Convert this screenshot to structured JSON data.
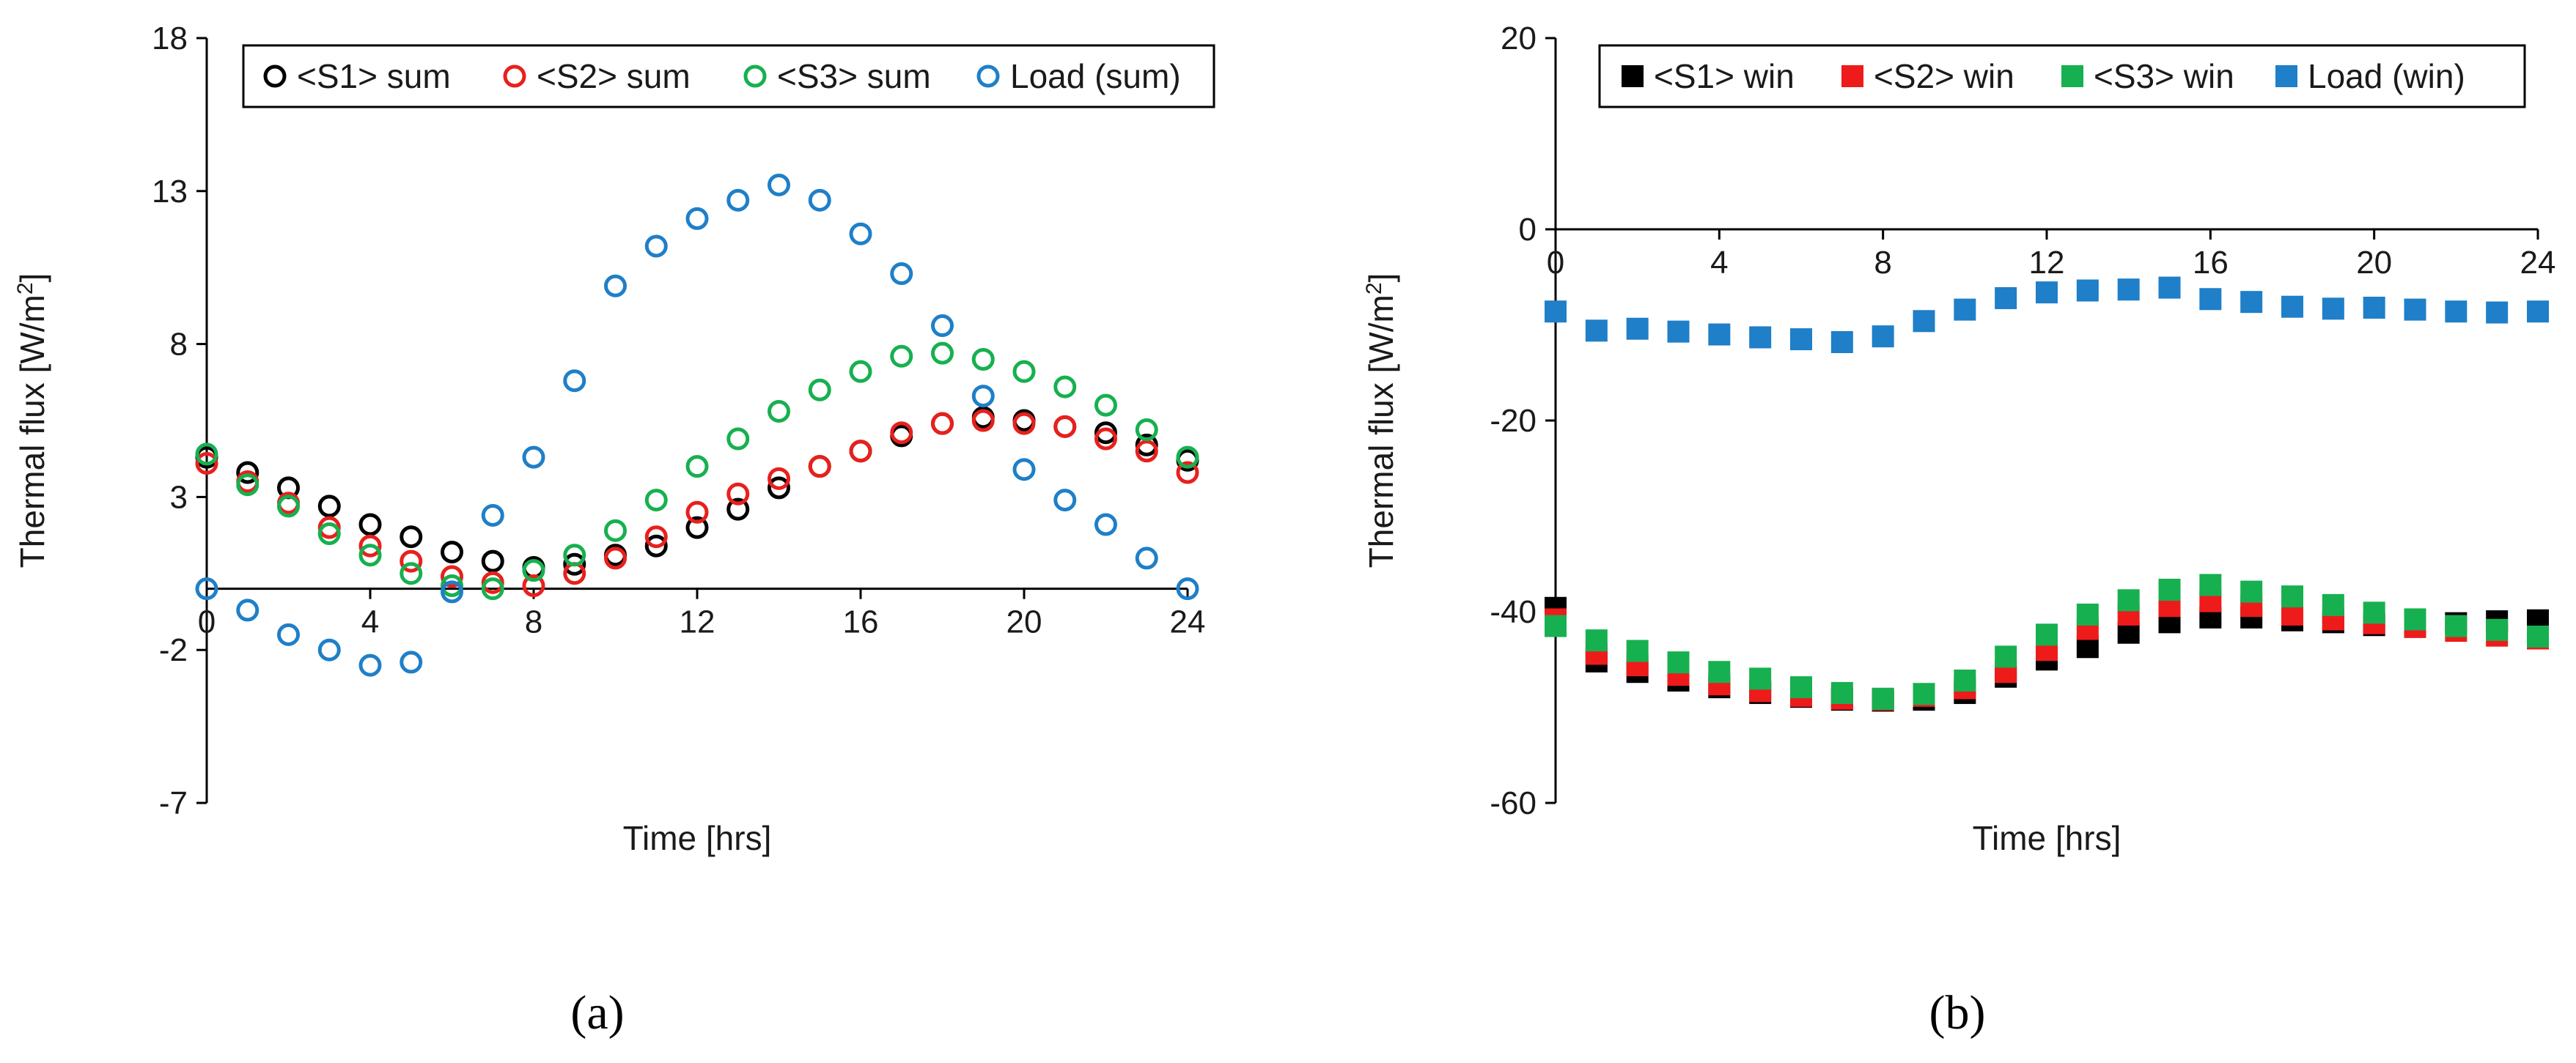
{
  "chart_data": [
    {
      "type": "scatter",
      "panel_label": "(a)",
      "xlabel": "Time [hrs]",
      "ylabel": "Thermal flux [W/m",
      "ylabel_sup": "2",
      "ylabel_end": "]",
      "xlim": [
        0,
        24
      ],
      "ylim": [
        -7,
        18
      ],
      "xticks": [
        0,
        4,
        8,
        12,
        16,
        20,
        24
      ],
      "xtick_labels": [
        "0",
        "4",
        "8",
        "12",
        "16",
        "20",
        "24"
      ],
      "yticks": [
        -7,
        -2,
        3,
        8,
        13,
        18
      ],
      "ytick_labels": [
        "-7",
        "-2",
        "3",
        "8",
        "13",
        "18"
      ],
      "x_axis_at": 0,
      "legend_position": "top",
      "grid": false,
      "marker": "circle-open",
      "x": [
        0,
        1,
        2,
        3,
        4,
        5,
        6,
        7,
        8,
        9,
        10,
        11,
        12,
        13,
        14,
        15,
        16,
        17,
        18,
        19,
        20,
        21,
        22,
        23,
        24
      ],
      "series": [
        {
          "name": "<S1> sum",
          "color": "#000000",
          "values": [
            4.3,
            3.8,
            3.3,
            2.7,
            2.1,
            1.7,
            1.2,
            0.9,
            0.7,
            0.8,
            1.1,
            1.4,
            2.0,
            2.6,
            3.3,
            4.0,
            4.5,
            5.0,
            5.4,
            5.6,
            5.5,
            5.3,
            5.1,
            4.7,
            4.2
          ]
        },
        {
          "name": "<S2> sum",
          "color": "#e8201c",
          "values": [
            4.1,
            3.5,
            2.8,
            2.0,
            1.4,
            0.9,
            0.4,
            0.2,
            0.1,
            0.5,
            1.0,
            1.7,
            2.5,
            3.1,
            3.6,
            4.0,
            4.5,
            5.1,
            5.4,
            5.5,
            5.4,
            5.3,
            4.9,
            4.5,
            3.8
          ]
        },
        {
          "name": "<S3> sum",
          "color": "#17b050",
          "values": [
            4.4,
            3.4,
            2.7,
            1.8,
            1.1,
            0.5,
            0.1,
            0.0,
            0.6,
            1.1,
            1.9,
            2.9,
            4.0,
            4.9,
            5.8,
            6.5,
            7.1,
            7.6,
            7.7,
            7.5,
            7.1,
            6.6,
            6.0,
            5.2,
            4.3
          ]
        },
        {
          "name": "Load (sum)",
          "color": "#1f7fc8",
          "values": [
            0.0,
            -0.7,
            -1.5,
            -2.0,
            -2.5,
            -2.4,
            -0.1,
            2.4,
            4.3,
            6.8,
            9.9,
            11.2,
            12.1,
            12.7,
            13.2,
            12.7,
            11.6,
            10.3,
            8.6,
            6.3,
            3.9,
            2.9,
            2.1,
            1.0,
            0.0
          ]
        }
      ]
    },
    {
      "type": "scatter",
      "panel_label": "(b)",
      "xlabel": "Time [hrs]",
      "ylabel": "Thermal flux [W/m",
      "ylabel_sup": "2",
      "ylabel_end": "]",
      "xlim": [
        0,
        24
      ],
      "ylim": [
        -60,
        20
      ],
      "xticks": [
        0,
        4,
        8,
        12,
        16,
        20,
        24
      ],
      "xtick_labels": [
        "0",
        "4",
        "8",
        "12",
        "16",
        "20",
        "24"
      ],
      "yticks": [
        -60,
        -40,
        -20,
        0,
        20
      ],
      "ytick_labels": [
        "-60",
        "-40",
        "-20",
        "0",
        "20"
      ],
      "x_axis_at": 0,
      "legend_position": "top",
      "grid": false,
      "marker": "square-filled",
      "x": [
        0,
        1,
        2,
        3,
        4,
        5,
        6,
        7,
        8,
        9,
        10,
        11,
        12,
        13,
        14,
        15,
        16,
        17,
        18,
        19,
        20,
        21,
        22,
        23,
        24
      ],
      "series": [
        {
          "name": "<S1> win",
          "color": "#000000",
          "values": [
            -39.6,
            -45.2,
            -46.3,
            -47.2,
            -47.9,
            -48.5,
            -48.9,
            -49.2,
            -49.3,
            -49.2,
            -48.5,
            -46.8,
            -45.0,
            -43.7,
            -42.2,
            -41.1,
            -40.6,
            -40.6,
            -40.9,
            -41.1,
            -41.4,
            -41.5,
            -41.2,
            -41.0,
            -40.9
          ]
        },
        {
          "name": "<S2> win",
          "color": "#ee1b1b",
          "values": [
            -40.8,
            -44.4,
            -45.6,
            -46.6,
            -47.6,
            -48.3,
            -48.8,
            -49.1,
            -49.2,
            -48.8,
            -48.0,
            -46.3,
            -44.0,
            -41.8,
            -40.3,
            -39.4,
            -38.9,
            -39.4,
            -40.3,
            -40.8,
            -41.2,
            -41.6,
            -42.0,
            -42.5,
            -42.8
          ]
        },
        {
          "name": "<S3> win",
          "color": "#17b050",
          "values": [
            -41.5,
            -43.0,
            -44.1,
            -45.3,
            -46.3,
            -47.0,
            -47.9,
            -48.5,
            -49.1,
            -48.6,
            -47.2,
            -44.7,
            -42.4,
            -40.3,
            -38.8,
            -37.7,
            -37.2,
            -37.9,
            -38.4,
            -39.3,
            -40.1,
            -40.8,
            -41.5,
            -41.9,
            -42.6
          ]
        },
        {
          "name": "Load (win)",
          "color": "#1f7fc8",
          "values": [
            -8.6,
            -10.6,
            -10.4,
            -10.7,
            -11.0,
            -11.3,
            -11.5,
            -11.8,
            -11.2,
            -9.6,
            -8.4,
            -7.2,
            -6.6,
            -6.4,
            -6.3,
            -6.1,
            -7.3,
            -7.6,
            -8.1,
            -8.3,
            -8.2,
            -8.4,
            -8.6,
            -8.7,
            -8.6
          ]
        }
      ]
    }
  ]
}
